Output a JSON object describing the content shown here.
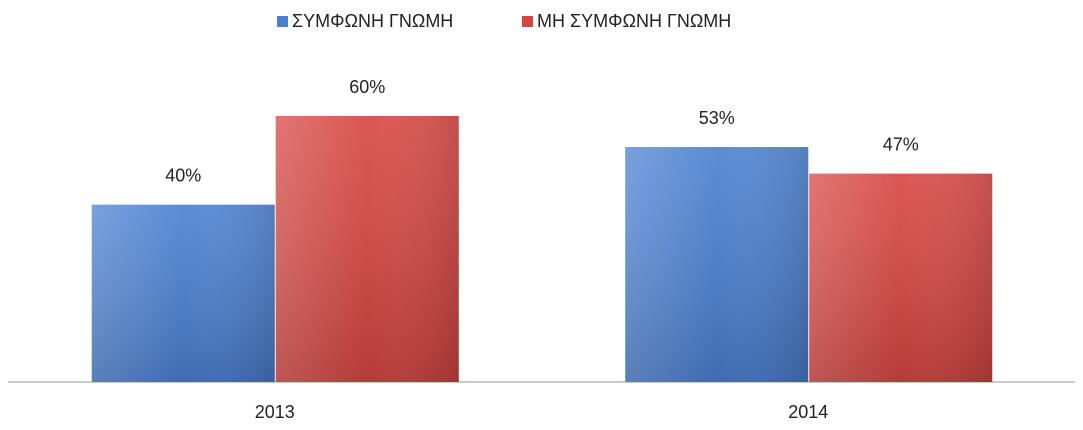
{
  "chart_data": {
    "type": "bar",
    "categories": [
      "2013",
      "2014"
    ],
    "series": [
      {
        "name": "ΣΥΜΦΩΝΗ ΓΝΩΜΗ",
        "color": "#4a7fd0",
        "values": [
          40,
          53
        ],
        "value_labels": [
          "40%",
          "53%"
        ]
      },
      {
        "name": "ΜΗ ΣΥΜΦΩΝΗ ΓΝΩΜΗ",
        "color": "#d64541",
        "values": [
          60,
          47
        ],
        "value_labels": [
          "60%",
          "47%"
        ]
      }
    ],
    "legend": "top"
  }
}
